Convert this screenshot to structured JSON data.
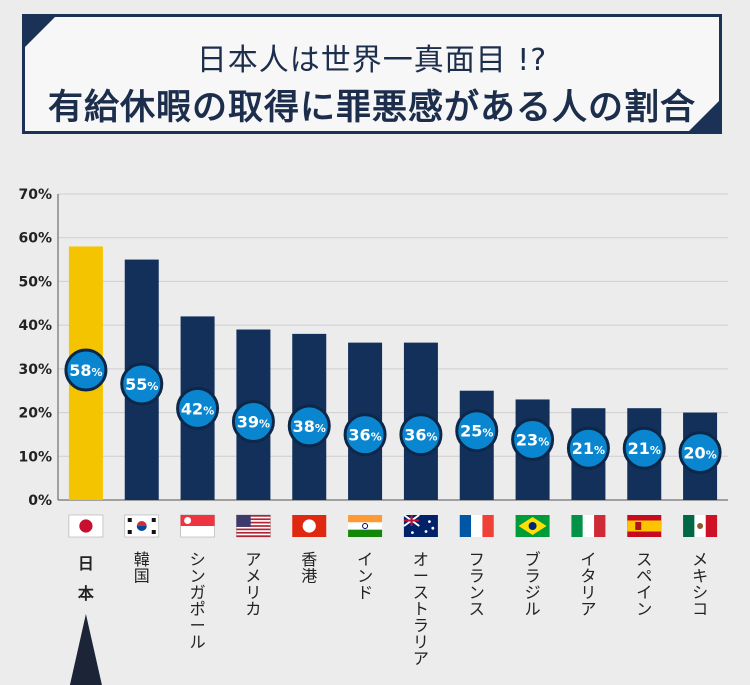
{
  "title": {
    "line1": "日本人は世界一真面目 !?",
    "line2": "有給休暇の取得に罪悪感がある人の割合"
  },
  "chart_data": {
    "type": "bar",
    "categories": [
      "日本",
      "韓国",
      "シンガポール",
      "アメリカ",
      "香港",
      "インド",
      "オーストラリア",
      "フランス",
      "ブラジル",
      "イタリア",
      "スペイン",
      "メキシコ"
    ],
    "values": [
      58,
      55,
      42,
      39,
      38,
      36,
      36,
      25,
      23,
      21,
      21,
      20
    ],
    "value_suffix": "%",
    "y_ticks": [
      "0%",
      "10%",
      "20%",
      "30%",
      "40%",
      "50%",
      "60%",
      "70%"
    ],
    "ylim": [
      0,
      70
    ],
    "grid": true,
    "highlight_index": 0,
    "colors": {
      "bar": "#12305a",
      "highlight_bar": "#f5c400",
      "badge_fill": "#0a86d0",
      "badge_stroke": "#0d2748",
      "grid": "#cfcfcf"
    },
    "flags": [
      "japan-flag-icon",
      "korea-flag-icon",
      "singapore-flag-icon",
      "usa-flag-icon",
      "hongkong-flag-icon",
      "india-flag-icon",
      "australia-flag-icon",
      "france-flag-icon",
      "brazil-flag-icon",
      "italy-flag-icon",
      "spain-flag-icon",
      "mexico-flag-icon"
    ]
  }
}
